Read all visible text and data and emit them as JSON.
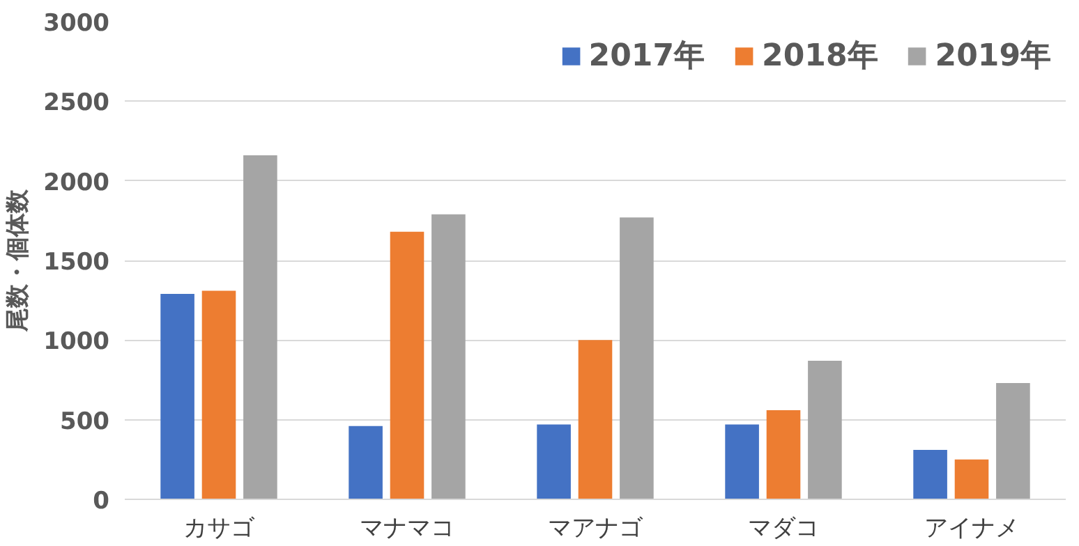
{
  "chart_data": {
    "type": "bar",
    "ylabel": "尾数・個体数",
    "categories": [
      "カサゴ",
      "マナマコ",
      "マアナゴ",
      "マダコ",
      "アイナメ"
    ],
    "series": [
      {
        "name": "2017年",
        "color": "#4472c4",
        "values": [
          1290,
          460,
          470,
          470,
          310
        ]
      },
      {
        "name": "2018年",
        "color": "#ed7d31",
        "values": [
          1310,
          1680,
          1000,
          560,
          250
        ]
      },
      {
        "name": "2019年",
        "color": "#a5a5a5",
        "values": [
          2160,
          1790,
          1770,
          870,
          730
        ]
      }
    ],
    "ylim": [
      0,
      3000
    ],
    "yticks": [
      0,
      500,
      1000,
      1500,
      2000,
      2500,
      3000
    ],
    "grid": "y",
    "legend": "top right"
  }
}
